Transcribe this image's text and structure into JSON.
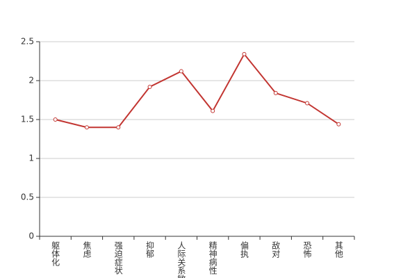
{
  "chart_data": {
    "type": "line",
    "categories": [
      "躯体化",
      "焦虑",
      "强迫症状",
      "抑郁",
      "人际关系敏感",
      "精神病性",
      "偏执",
      "敌对",
      "恐怖",
      "其他"
    ],
    "values": [
      1.5,
      1.4,
      1.4,
      1.92,
      2.12,
      1.61,
      2.34,
      1.84,
      1.71,
      1.44
    ],
    "color": "#c23531",
    "ylim": [
      0,
      2.5
    ],
    "yticks": [
      0,
      0.5,
      1,
      1.5,
      2,
      2.5
    ],
    "grid": true
  }
}
